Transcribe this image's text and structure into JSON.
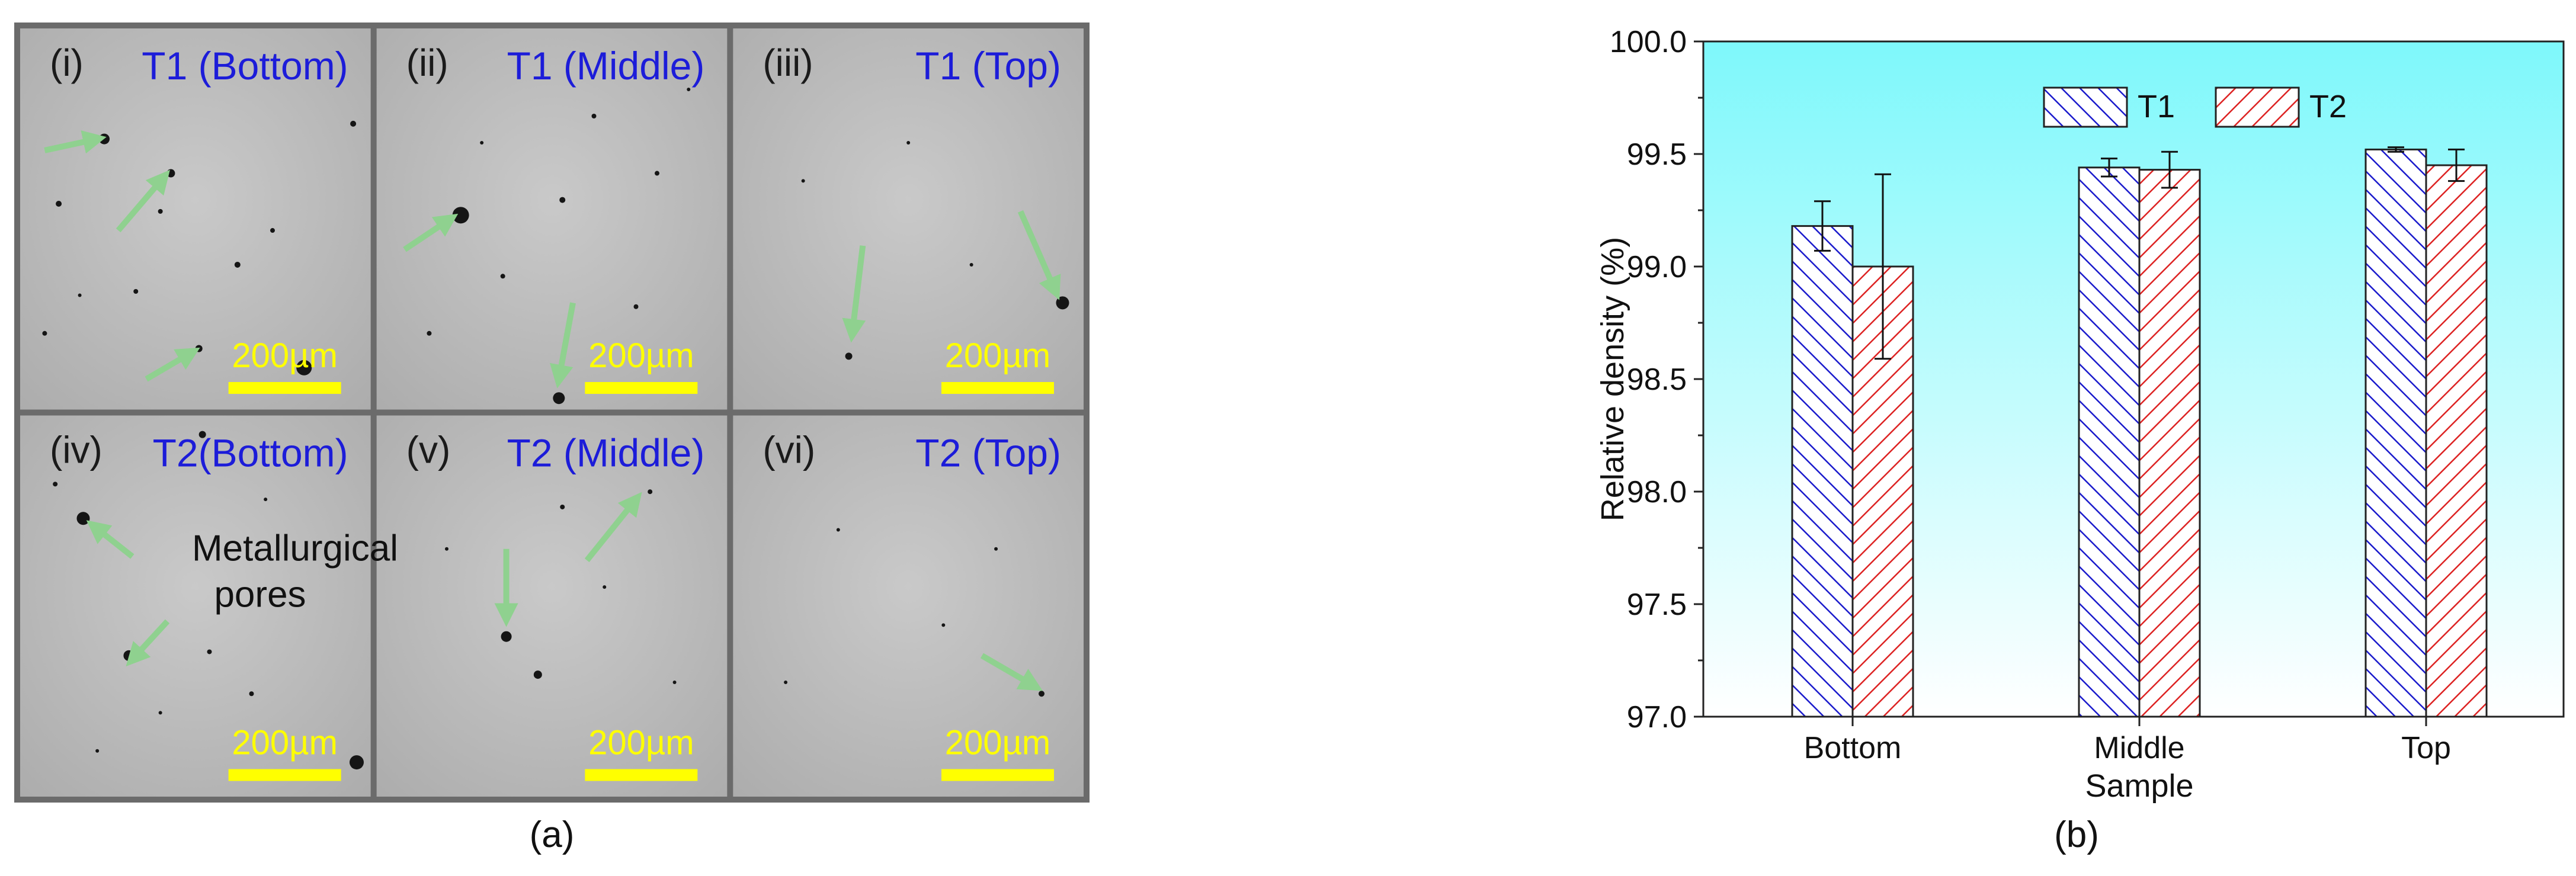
{
  "figure_a": {
    "caption": "(a)",
    "panels": [
      {
        "label": "(i)",
        "title": "T1 (Bottom)",
        "scale_bar": "200µm"
      },
      {
        "label": "(ii)",
        "title": "T1 (Middle)",
        "scale_bar": "200µm"
      },
      {
        "label": "(iii)",
        "title": "T1 (Top)",
        "scale_bar": "200µm"
      },
      {
        "label": "(iv)",
        "title": "T2(Bottom)",
        "scale_bar": "200µm"
      },
      {
        "label": "(v)",
        "title": "T2 (Middle)",
        "scale_bar": "200µm"
      },
      {
        "label": "(vi)",
        "title": "T2 (Top)",
        "scale_bar": "200µm"
      }
    ],
    "annotation": {
      "line1": "Metallurgical",
      "line2": "pores"
    },
    "colors": {
      "title": "#1c1cd9",
      "scale_bar": "#ffff00",
      "arrow": "#8fd18f",
      "frame": "#6b6b6b"
    }
  },
  "chart_data": {
    "type": "bar",
    "caption": "(b)",
    "xlabel": "Sample",
    "ylabel": "Relative density (%)",
    "categories": [
      "Bottom",
      "Middle",
      "Top"
    ],
    "ylim": [
      97.0,
      100.0
    ],
    "yticks": [
      "97.0",
      "97.5",
      "98.0",
      "98.5",
      "99.0",
      "99.5",
      "100.0"
    ],
    "legend_position": "top",
    "series": [
      {
        "name": "T1",
        "values": [
          99.18,
          99.44,
          99.52
        ],
        "errors": [
          0.11,
          0.04,
          0.01
        ],
        "color": "#1a1acc",
        "hatch": "forward-diagonal"
      },
      {
        "name": "T2",
        "values": [
          99.0,
          99.43,
          99.45
        ],
        "errors": [
          0.41,
          0.08,
          0.07
        ],
        "color": "#dd2222",
        "hatch": "back-diagonal"
      }
    ],
    "background_gradient": [
      "#7ef8fb",
      "#ffffff"
    ]
  }
}
